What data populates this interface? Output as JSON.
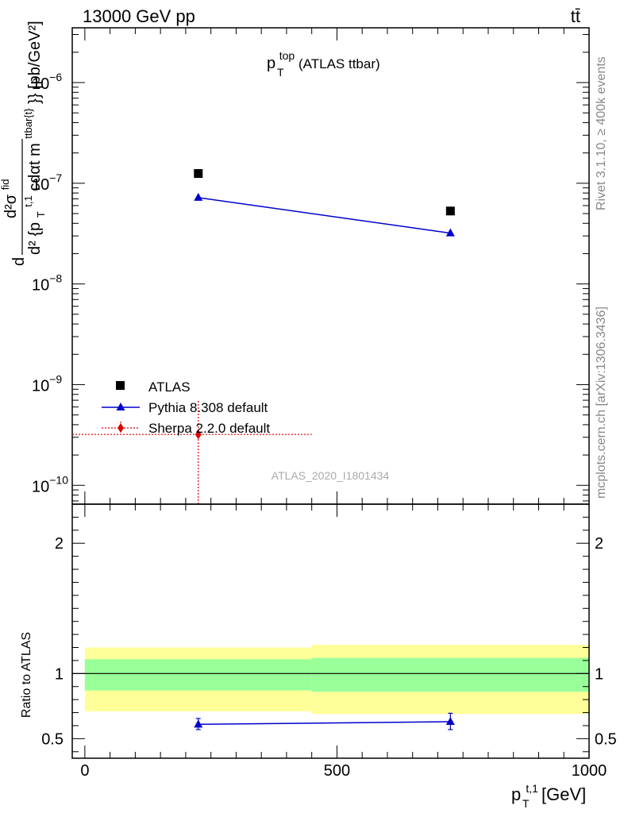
{
  "header": {
    "left": "13000 GeV pp",
    "right": "tt̄"
  },
  "side_text": {
    "rivet": "Rivet 3.1.10, ≥ 400k events",
    "mcplots": "mcplots.cern.ch [arXiv:1306.3436]"
  },
  "colors": {
    "atlas": "#000000",
    "pythia": "#0000cc",
    "sherpa": "#dd0000",
    "band_inner": "#99ff99",
    "band_outer": "#ffff99"
  },
  "chart_data": [
    {
      "type": "scatter",
      "panel": "main",
      "title": "p_T^top (ATLAS ttbar)",
      "title_base": "p",
      "title_sup": "top",
      "title_sub": "T",
      "title_rest": "(ATLAS ttbar)",
      "watermark": "ATLAS_2020_I1801434",
      "yscale": "log",
      "ylim": [
        6.5e-11,
        3.5e-06
      ],
      "xlim": [
        -25,
        1000
      ],
      "ylabel": "d²σ^{fid} / d² {p_T^{t,1} cdαt m^{ttbar{t}}} [pb/GeV²]",
      "ylabel_parts": {
        "numerator": "d²σ",
        "numerator_sup": "fid",
        "d": "d",
        "denominator": "d² {p",
        "den_sub": "T",
        "den_sup": "t,1",
        "den_mid": " cdαt m",
        "den_sup2": "ttbar{t}",
        "den_end": "}} [pb/GeV²]"
      },
      "y_ticks": [
        {
          "value": 1e-10,
          "label": "10",
          "exp": "−10"
        },
        {
          "value": 1e-09,
          "label": "10",
          "exp": "−9"
        },
        {
          "value": 1e-08,
          "label": "10",
          "exp": "−8"
        },
        {
          "value": 1e-07,
          "label": "10",
          "exp": "−7"
        },
        {
          "value": 1e-06,
          "label": "10",
          "exp": "−6"
        }
      ],
      "legend": {
        "position": "lower-left",
        "entries": [
          "ATLAS",
          "Pythia 8.308 default",
          "Sherpa 2.2.0 default"
        ]
      },
      "series": [
        {
          "name": "ATLAS",
          "marker": "square",
          "x": [
            225,
            725
          ],
          "y": [
            1.25e-07,
            5.3e-08
          ]
        },
        {
          "name": "Pythia 8.308 default",
          "marker": "triangle",
          "line": true,
          "x": [
            225,
            725
          ],
          "y": [
            7.2e-08,
            3.2e-08
          ]
        },
        {
          "name": "Sherpa 2.2.0 default",
          "marker": "diamond",
          "line": "dotted",
          "x": [
            225
          ],
          "y": [
            3.2e-10
          ],
          "xerr": [
            [
              225,
              225
            ]
          ]
        }
      ]
    },
    {
      "type": "scatter",
      "panel": "ratio",
      "ylabel": "Ratio to ATLAS",
      "xlabel": "p_T^{t,1} [GeV]",
      "xlabel_parts": {
        "base": "p",
        "sub": "T",
        "sup": "t,1",
        "unit": "[GeV]"
      },
      "xlim": [
        -25,
        1000
      ],
      "ylim": [
        0.35,
        2.3
      ],
      "x_ticks": [
        0,
        500,
        1000
      ],
      "x_tick_labels": [
        "0",
        "500",
        "1000"
      ],
      "y_ticks": [
        0.5,
        1,
        2
      ],
      "y_tick_labels": [
        "0.5",
        "1",
        "2"
      ],
      "bins": [
        {
          "xlow": 0,
          "xhigh": 450,
          "inner": [
            0.87,
            1.11
          ],
          "outer": [
            0.71,
            1.2
          ]
        },
        {
          "xlow": 450,
          "xhigh": 1000,
          "inner": [
            0.86,
            1.12
          ],
          "outer": [
            0.69,
            1.22
          ]
        }
      ],
      "series": [
        {
          "name": "Pythia 8.308 default",
          "x": [
            225,
            725
          ],
          "y": [
            0.61,
            0.63
          ],
          "yerr_low": [
            0.57,
            0.57
          ],
          "yerr_high": [
            0.655,
            0.695
          ]
        }
      ]
    }
  ]
}
